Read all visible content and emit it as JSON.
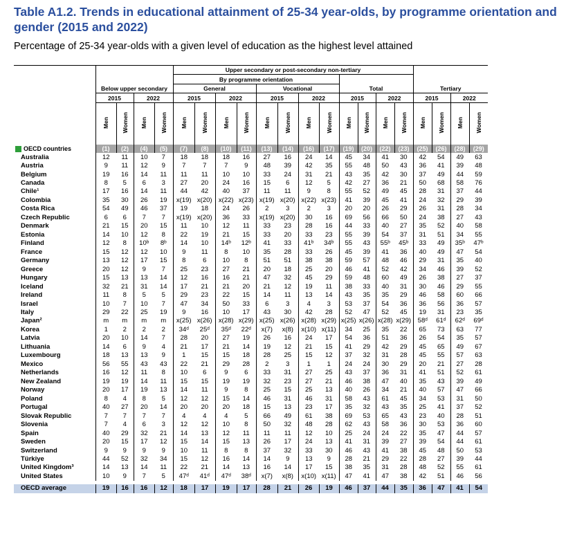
{
  "title": "Table A1.2. Trends in educational attainment of 25-34 year-olds, by programme orientation and gender (2015 and 2022)",
  "subtitle": "Percentage of 25-34 year-olds with a given level of education as the highest level attained",
  "header": {
    "upper_secondary": "Upper secondary or post-secondary non-tertiary",
    "by_orientation": "By programme orientation",
    "below_upper": "Below upper secondary",
    "general": "General",
    "vocational": "Vocational",
    "total": "Total",
    "tertiary": "Tertiary",
    "year1": "2015",
    "year2": "2022",
    "men": "Men",
    "women": "Women",
    "oecd_countries": "OECD countries"
  },
  "col_numbers": [
    "(1)",
    "(2)",
    "(4)",
    "(5)",
    "(7)",
    "(8)",
    "(10)",
    "(11)",
    "(13)",
    "(14)",
    "(16)",
    "(17)",
    "(19)",
    "(20)",
    "(22)",
    "(23)",
    "(25)",
    "(26)",
    "(28)",
    "(29)"
  ],
  "rows": [
    {
      "country": "Australia",
      "v": [
        "12",
        "11",
        "10",
        "7",
        "18",
        "18",
        "18",
        "16",
        "27",
        "16",
        "24",
        "14",
        "45",
        "34",
        "41",
        "30",
        "42",
        "54",
        "49",
        "63"
      ]
    },
    {
      "country": "Austria",
      "v": [
        "9",
        "11",
        "12",
        "9",
        "7",
        "7",
        "7",
        "9",
        "48",
        "39",
        "42",
        "35",
        "55",
        "48",
        "50",
        "43",
        "36",
        "41",
        "39",
        "48"
      ]
    },
    {
      "country": "Belgium",
      "v": [
        "19",
        "16",
        "14",
        "11",
        "11",
        "11",
        "10",
        "10",
        "33",
        "24",
        "31",
        "21",
        "43",
        "35",
        "42",
        "30",
        "37",
        "49",
        "44",
        "59"
      ]
    },
    {
      "country": "Canada",
      "v": [
        "8",
        "5",
        "6",
        "3",
        "27",
        "20",
        "24",
        "16",
        "15",
        "6",
        "12",
        "5",
        "42",
        "27",
        "36",
        "21",
        "50",
        "68",
        "58",
        "76"
      ]
    },
    {
      "country": "Chile¹",
      "v": [
        "17",
        "16",
        "14",
        "11",
        "44",
        "42",
        "40",
        "37",
        "11",
        "11",
        "9",
        "8",
        "55",
        "52",
        "49",
        "45",
        "28",
        "31",
        "37",
        "44"
      ]
    },
    {
      "country": "Colombia",
      "v": [
        "35",
        "30",
        "26",
        "19",
        "x(19)",
        "x(20)",
        "x(22)",
        "x(23)",
        "x(19)",
        "x(20)",
        "x(22)",
        "x(23)",
        "41",
        "39",
        "45",
        "41",
        "24",
        "32",
        "29",
        "39"
      ]
    },
    {
      "country": "Costa Rica",
      "v": [
        "54",
        "49",
        "46",
        "37",
        "19",
        "18",
        "24",
        "26",
        "2",
        "3",
        "2",
        "3",
        "20",
        "20",
        "26",
        "29",
        "26",
        "31",
        "28",
        "34"
      ]
    },
    {
      "country": "Czech Republic",
      "v": [
        "6",
        "6",
        "7",
        "7",
        "x(19)",
        "x(20)",
        "36",
        "33",
        "x(19)",
        "x(20)",
        "30",
        "16",
        "69",
        "56",
        "66",
        "50",
        "24",
        "38",
        "27",
        "43"
      ]
    },
    {
      "country": "Denmark",
      "v": [
        "21",
        "15",
        "20",
        "15",
        "11",
        "10",
        "12",
        "11",
        "33",
        "23",
        "28",
        "16",
        "44",
        "33",
        "40",
        "27",
        "35",
        "52",
        "40",
        "58"
      ]
    },
    {
      "country": "Estonia",
      "v": [
        "14",
        "10",
        "12",
        "8",
        "22",
        "19",
        "21",
        "15",
        "33",
        "20",
        "33",
        "23",
        "55",
        "39",
        "54",
        "37",
        "31",
        "51",
        "34",
        "55"
      ]
    },
    {
      "country": "Finland",
      "v": [
        "12",
        "8",
        "10ᵇ",
        "8ᵇ",
        "14",
        "10",
        "14ᵇ",
        "12ᵇ",
        "41",
        "33",
        "41ᵇ",
        "34ᵇ",
        "55",
        "43",
        "55ᵇ",
        "45ᵇ",
        "33",
        "49",
        "35ᵇ",
        "47ᵇ"
      ]
    },
    {
      "country": "France",
      "v": [
        "15",
        "12",
        "12",
        "10",
        "9",
        "11",
        "8",
        "10",
        "35",
        "28",
        "33",
        "26",
        "45",
        "39",
        "41",
        "36",
        "40",
        "49",
        "47",
        "54"
      ]
    },
    {
      "country": "Germany",
      "v": [
        "13",
        "12",
        "17",
        "15",
        "8",
        "6",
        "10",
        "8",
        "51",
        "51",
        "38",
        "38",
        "59",
        "57",
        "48",
        "46",
        "29",
        "31",
        "35",
        "40"
      ]
    },
    {
      "country": "Greece",
      "v": [
        "20",
        "12",
        "9",
        "7",
        "25",
        "23",
        "27",
        "21",
        "20",
        "18",
        "25",
        "20",
        "46",
        "41",
        "52",
        "42",
        "34",
        "46",
        "39",
        "52"
      ]
    },
    {
      "country": "Hungary",
      "v": [
        "15",
        "13",
        "13",
        "14",
        "12",
        "16",
        "16",
        "21",
        "47",
        "32",
        "45",
        "29",
        "59",
        "48",
        "60",
        "49",
        "26",
        "38",
        "27",
        "37"
      ]
    },
    {
      "country": "Iceland",
      "v": [
        "32",
        "21",
        "31",
        "14",
        "17",
        "21",
        "21",
        "20",
        "21",
        "12",
        "19",
        "11",
        "38",
        "33",
        "40",
        "31",
        "30",
        "46",
        "29",
        "55"
      ]
    },
    {
      "country": "Ireland",
      "v": [
        "11",
        "8",
        "5",
        "5",
        "29",
        "23",
        "22",
        "15",
        "14",
        "11",
        "13",
        "14",
        "43",
        "35",
        "35",
        "29",
        "46",
        "58",
        "60",
        "66"
      ]
    },
    {
      "country": "Israel",
      "v": [
        "10",
        "7",
        "10",
        "7",
        "47",
        "34",
        "50",
        "33",
        "6",
        "3",
        "4",
        "3",
        "53",
        "37",
        "54",
        "36",
        "36",
        "56",
        "36",
        "57"
      ]
    },
    {
      "country": "Italy",
      "v": [
        "29",
        "22",
        "25",
        "19",
        "9",
        "16",
        "10",
        "17",
        "43",
        "30",
        "42",
        "28",
        "52",
        "47",
        "52",
        "45",
        "19",
        "31",
        "23",
        "35"
      ]
    },
    {
      "country": "Japan²",
      "v": [
        "m",
        "m",
        "m",
        "m",
        "x(25)",
        "x(26)",
        "x(28)",
        "x(29)",
        "x(25)",
        "x(26)",
        "x(28)",
        "x(29)",
        "x(25)",
        "x(26)",
        "x(28)",
        "x(29)",
        "58ᵈ",
        "61ᵈ",
        "62ᵈ",
        "69ᵈ"
      ]
    },
    {
      "country": "Korea",
      "v": [
        "1",
        "2",
        "2",
        "2",
        "34ᵈ",
        "25ᵈ",
        "35ᵈ",
        "22ᵈ",
        "x(7)",
        "x(8)",
        "x(10)",
        "x(11)",
        "34",
        "25",
        "35",
        "22",
        "65",
        "73",
        "63",
        "77"
      ]
    },
    {
      "country": "Latvia",
      "v": [
        "20",
        "10",
        "14",
        "7",
        "28",
        "20",
        "27",
        "19",
        "26",
        "16",
        "24",
        "17",
        "54",
        "36",
        "51",
        "36",
        "26",
        "54",
        "35",
        "57"
      ]
    },
    {
      "country": "Lithuania",
      "v": [
        "14",
        "6",
        "9",
        "4",
        "21",
        "17",
        "21",
        "14",
        "19",
        "12",
        "21",
        "15",
        "41",
        "29",
        "42",
        "29",
        "45",
        "65",
        "49",
        "67"
      ]
    },
    {
      "country": "Luxembourg",
      "v": [
        "18",
        "13",
        "13",
        "9",
        "1",
        "15",
        "15",
        "18",
        "28",
        "25",
        "15",
        "12",
        "37",
        "32",
        "31",
        "28",
        "45",
        "55",
        "57",
        "63"
      ]
    },
    {
      "country": "Mexico",
      "v": [
        "56",
        "55",
        "43",
        "43",
        "22",
        "21",
        "29",
        "28",
        "2",
        "3",
        "1",
        "1",
        "24",
        "24",
        "30",
        "29",
        "20",
        "21",
        "27",
        "28"
      ]
    },
    {
      "country": "Netherlands",
      "v": [
        "16",
        "12",
        "11",
        "8",
        "10",
        "6",
        "9",
        "6",
        "33",
        "31",
        "27",
        "25",
        "43",
        "37",
        "36",
        "31",
        "41",
        "51",
        "52",
        "61"
      ]
    },
    {
      "country": "New Zealand",
      "v": [
        "19",
        "19",
        "14",
        "11",
        "15",
        "15",
        "19",
        "19",
        "32",
        "23",
        "27",
        "21",
        "46",
        "38",
        "47",
        "40",
        "35",
        "43",
        "39",
        "49"
      ]
    },
    {
      "country": "Norway",
      "v": [
        "20",
        "17",
        "19",
        "13",
        "14",
        "11",
        "9",
        "8",
        "25",
        "15",
        "25",
        "13",
        "40",
        "26",
        "34",
        "21",
        "40",
        "57",
        "47",
        "66"
      ]
    },
    {
      "country": "Poland",
      "v": [
        "8",
        "4",
        "8",
        "5",
        "12",
        "12",
        "15",
        "14",
        "46",
        "31",
        "46",
        "31",
        "58",
        "43",
        "61",
        "45",
        "34",
        "53",
        "31",
        "50"
      ]
    },
    {
      "country": "Portugal",
      "v": [
        "40",
        "27",
        "20",
        "14",
        "20",
        "20",
        "20",
        "18",
        "15",
        "13",
        "23",
        "17",
        "35",
        "32",
        "43",
        "35",
        "25",
        "41",
        "37",
        "52"
      ]
    },
    {
      "country": "Slovak Republic",
      "v": [
        "7",
        "7",
        "7",
        "7",
        "4",
        "4",
        "4",
        "5",
        "66",
        "49",
        "61",
        "38",
        "69",
        "53",
        "65",
        "43",
        "23",
        "40",
        "28",
        "51"
      ]
    },
    {
      "country": "Slovenia",
      "v": [
        "7",
        "4",
        "6",
        "3",
        "12",
        "12",
        "10",
        "8",
        "50",
        "32",
        "48",
        "28",
        "62",
        "43",
        "58",
        "36",
        "30",
        "53",
        "36",
        "60"
      ]
    },
    {
      "country": "Spain",
      "v": [
        "40",
        "29",
        "32",
        "21",
        "14",
        "13",
        "12",
        "11",
        "11",
        "11",
        "12",
        "10",
        "25",
        "24",
        "24",
        "22",
        "35",
        "47",
        "44",
        "57"
      ]
    },
    {
      "country": "Sweden",
      "v": [
        "20",
        "15",
        "17",
        "12",
        "15",
        "14",
        "15",
        "13",
        "26",
        "17",
        "24",
        "13",
        "41",
        "31",
        "39",
        "27",
        "39",
        "54",
        "44",
        "61"
      ]
    },
    {
      "country": "Switzerland",
      "v": [
        "9",
        "9",
        "9",
        "9",
        "10",
        "11",
        "8",
        "8",
        "37",
        "32",
        "33",
        "30",
        "46",
        "43",
        "41",
        "38",
        "45",
        "48",
        "50",
        "53"
      ]
    },
    {
      "country": "Türkiye",
      "v": [
        "44",
        "52",
        "32",
        "34",
        "15",
        "12",
        "16",
        "14",
        "14",
        "9",
        "13",
        "9",
        "28",
        "21",
        "29",
        "22",
        "28",
        "27",
        "39",
        "44"
      ]
    },
    {
      "country": "United Kingdom³",
      "v": [
        "14",
        "13",
        "14",
        "11",
        "22",
        "21",
        "14",
        "13",
        "16",
        "14",
        "17",
        "15",
        "38",
        "35",
        "31",
        "28",
        "48",
        "52",
        "55",
        "61"
      ]
    },
    {
      "country": "United States",
      "v": [
        "10",
        "9",
        "7",
        "5",
        "47ᵈ",
        "41ᵈ",
        "47ᵈ",
        "38ᵈ",
        "x(7)",
        "x(8)",
        "x(10)",
        "x(11)",
        "47",
        "41",
        "47",
        "38",
        "42",
        "51",
        "46",
        "56"
      ]
    }
  ],
  "average": {
    "country": "OECD average",
    "v": [
      "19",
      "16",
      "16",
      "12",
      "18",
      "17",
      "19",
      "17",
      "28",
      "21",
      "26",
      "19",
      "46",
      "37",
      "44",
      "35",
      "36",
      "47",
      "41",
      "54"
    ]
  },
  "colors": {
    "title": "#2b4f9e",
    "number_row": "#a6a6a6",
    "average_row": "#c5d3e8",
    "oecd_marker": "#2e9e3a"
  }
}
